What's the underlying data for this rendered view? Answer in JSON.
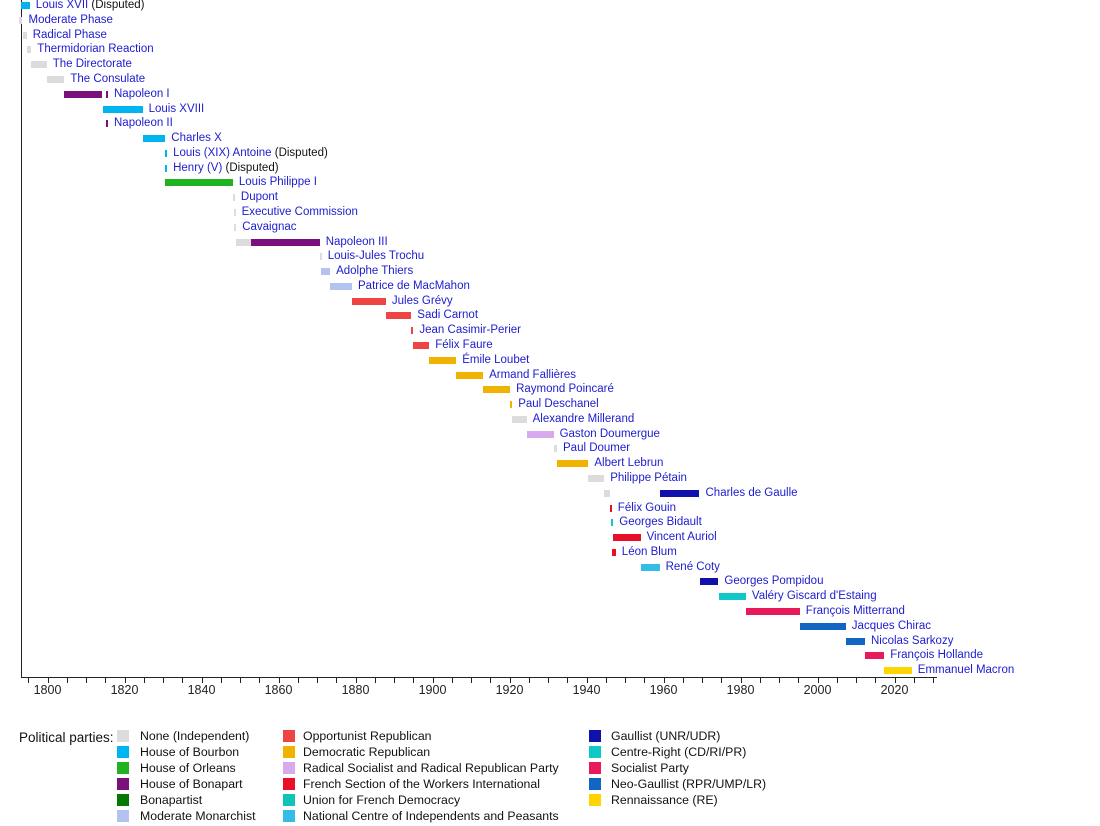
{
  "palette": {
    "none": "#DCDCDC",
    "house_of_bourbon": "#00B4F0",
    "house_of_orleans": "#1FB41F",
    "house_of_bonapart": "#7A107A",
    "bonapartist": "#067806",
    "moderate_monarchist": "#B4C2F0",
    "opportunist_republican": "#EE4444",
    "democratic_republican": "#F0B400",
    "radical_socialist": "#D9A9ED",
    "sfio": "#E80F28",
    "udf": "#11C5B4",
    "cnip": "#35BDE8",
    "gaullist": "#1010AA",
    "centre_right": "#10C8C8",
    "socialist": "#E91A5C",
    "neo_gaullist": "#1166C4",
    "renaissance": "#FFD400"
  },
  "chart_data": {
    "type": "timeline",
    "title": "",
    "axis": {
      "start": 1793,
      "end": 2031,
      "minor_tick_years": 5,
      "label_years": 20,
      "tick_labels": [
        "1800",
        "1820",
        "1840",
        "1860",
        "1880",
        "1900",
        "1920",
        "1940",
        "1960",
        "1980",
        "2000",
        "2020"
      ]
    },
    "rows": [
      {
        "label": "Louis XVII",
        "suffix": " (Disputed)",
        "segments": [
          {
            "start": 1793.1,
            "end": 1795.4,
            "party": "house_of_bourbon"
          }
        ]
      },
      {
        "label": "Moderate Phase",
        "segments": [
          {
            "start": 1792.7,
            "end": 1793.5,
            "party": "none"
          }
        ]
      },
      {
        "label": "Radical Phase",
        "segments": [
          {
            "start": 1793.5,
            "end": 1794.6,
            "party": "none"
          }
        ]
      },
      {
        "label": "Thermidorian Reaction",
        "segments": [
          {
            "start": 1794.6,
            "end": 1795.8,
            "party": "none"
          }
        ]
      },
      {
        "label": "The Directorate",
        "segments": [
          {
            "start": 1795.8,
            "end": 1799.8,
            "party": "none"
          }
        ]
      },
      {
        "label": "The Consulate",
        "segments": [
          {
            "start": 1799.8,
            "end": 1804.4,
            "party": "none"
          }
        ]
      },
      {
        "label": "Napoleon I",
        "segments": [
          {
            "start": 1804.4,
            "end": 1814.3,
            "party": "house_of_bonapart"
          },
          {
            "start": 1815.2,
            "end": 1815.5,
            "party": "house_of_bonapart"
          }
        ]
      },
      {
        "label": "Louis XVIII",
        "segments": [
          {
            "start": 1814.3,
            "end": 1824.7,
            "party": "house_of_bourbon"
          }
        ]
      },
      {
        "label": "Napoleon II",
        "segments": [
          {
            "start": 1815.2,
            "end": 1815.5,
            "party": "house_of_bonapart"
          }
        ]
      },
      {
        "label": "Charles X",
        "segments": [
          {
            "start": 1824.7,
            "end": 1830.6,
            "party": "house_of_bourbon"
          }
        ]
      },
      {
        "label": "Louis (XIX) Antoine",
        "suffix": " (Disputed)",
        "segments": [
          {
            "start": 1830.55,
            "end": 1830.85,
            "party": "house_of_bourbon"
          }
        ]
      },
      {
        "label": "Henry (V)",
        "suffix": " (Disputed)",
        "segments": [
          {
            "start": 1830.55,
            "end": 1830.85,
            "party": "house_of_bourbon"
          }
        ]
      },
      {
        "label": "Louis Philippe I",
        "segments": [
          {
            "start": 1830.6,
            "end": 1848.15,
            "party": "house_of_orleans"
          }
        ]
      },
      {
        "label": "Dupont",
        "segments": [
          {
            "start": 1848.15,
            "end": 1848.45,
            "party": "none"
          }
        ]
      },
      {
        "label": "Executive Commission",
        "segments": [
          {
            "start": 1848.35,
            "end": 1848.65,
            "party": "none"
          }
        ]
      },
      {
        "label": "Cavaignac",
        "segments": [
          {
            "start": 1848.5,
            "end": 1848.95,
            "party": "none"
          }
        ]
      },
      {
        "label": "Napoleon III",
        "segments": [
          {
            "start": 1848.95,
            "end": 1852.9,
            "party": "none"
          },
          {
            "start": 1852.9,
            "end": 1870.7,
            "party": "house_of_bonapart"
          }
        ]
      },
      {
        "label": "Louis-Jules Trochu",
        "segments": [
          {
            "start": 1870.7,
            "end": 1871.1,
            "party": "none"
          }
        ]
      },
      {
        "label": "Adolphe Thiers",
        "segments": [
          {
            "start": 1871.1,
            "end": 1873.4,
            "party": "moderate_monarchist"
          }
        ]
      },
      {
        "label": "Patrice de MacMahon",
        "segments": [
          {
            "start": 1873.4,
            "end": 1879.1,
            "party": "moderate_monarchist"
          }
        ]
      },
      {
        "label": "Jules Grévy",
        "segments": [
          {
            "start": 1879.1,
            "end": 1887.9,
            "party": "opportunist_republican"
          }
        ]
      },
      {
        "label": "Sadi Carnot",
        "segments": [
          {
            "start": 1887.9,
            "end": 1894.5,
            "party": "opportunist_republican"
          }
        ]
      },
      {
        "label": "Jean Casimir-Perier",
        "segments": [
          {
            "start": 1894.5,
            "end": 1895.05,
            "party": "opportunist_republican"
          }
        ]
      },
      {
        "label": "Félix Faure",
        "segments": [
          {
            "start": 1895.05,
            "end": 1899.15,
            "party": "opportunist_republican"
          }
        ]
      },
      {
        "label": "Émile Loubet",
        "segments": [
          {
            "start": 1899.15,
            "end": 1906.15,
            "party": "democratic_republican"
          }
        ]
      },
      {
        "label": "Armand Fallières",
        "segments": [
          {
            "start": 1906.15,
            "end": 1913.15,
            "party": "democratic_republican"
          }
        ]
      },
      {
        "label": "Raymond Poincaré",
        "segments": [
          {
            "start": 1913.15,
            "end": 1920.15,
            "party": "democratic_republican"
          }
        ]
      },
      {
        "label": "Paul Deschanel",
        "segments": [
          {
            "start": 1920.1,
            "end": 1920.7,
            "party": "democratic_republican"
          }
        ]
      },
      {
        "label": "Alexandre Millerand",
        "segments": [
          {
            "start": 1920.7,
            "end": 1924.45,
            "party": "none"
          }
        ]
      },
      {
        "label": "Gaston Doumergue",
        "segments": [
          {
            "start": 1924.45,
            "end": 1931.45,
            "party": "radical_socialist"
          }
        ]
      },
      {
        "label": "Paul Doumer",
        "segments": [
          {
            "start": 1931.45,
            "end": 1932.35,
            "party": "none"
          }
        ]
      },
      {
        "label": "Albert Lebrun",
        "segments": [
          {
            "start": 1932.35,
            "end": 1940.5,
            "party": "democratic_republican"
          }
        ]
      },
      {
        "label": "Philippe Pétain",
        "segments": [
          {
            "start": 1940.5,
            "end": 1944.6,
            "party": "none"
          }
        ]
      },
      {
        "label": "Charles de Gaulle",
        "segments": [
          {
            "start": 1944.6,
            "end": 1946.05,
            "party": "none"
          },
          {
            "start": 1959.0,
            "end": 1969.35,
            "party": "gaullist"
          }
        ]
      },
      {
        "label": "Félix Gouin",
        "segments": [
          {
            "start": 1946.05,
            "end": 1946.4,
            "party": "sfio"
          }
        ]
      },
      {
        "label": "Georges Bidault",
        "segments": [
          {
            "start": 1946.45,
            "end": 1946.8,
            "party": "centre_right"
          }
        ]
      },
      {
        "label": "Vincent Auriol",
        "segments": [
          {
            "start": 1946.85,
            "end": 1947.15,
            "party": "sfio"
          },
          {
            "start": 1947.4,
            "end": 1954.05,
            "party": "sfio"
          }
        ]
      },
      {
        "label": "Léon Blum",
        "segments": [
          {
            "start": 1946.6,
            "end": 1947.6,
            "party": "sfio"
          }
        ]
      },
      {
        "label": "René Coty",
        "segments": [
          {
            "start": 1954.05,
            "end": 1959.0,
            "party": "cnip"
          }
        ]
      },
      {
        "label": "Georges Pompidou",
        "segments": [
          {
            "start": 1969.45,
            "end": 1974.25,
            "party": "gaullist"
          }
        ]
      },
      {
        "label": "Valéry Giscard d'Estaing",
        "segments": [
          {
            "start": 1974.4,
            "end": 1981.4,
            "party": "centre_right"
          }
        ]
      },
      {
        "label": "François Mitterrand",
        "segments": [
          {
            "start": 1981.4,
            "end": 1995.4,
            "party": "socialist"
          }
        ]
      },
      {
        "label": "Jacques Chirac",
        "segments": [
          {
            "start": 1995.4,
            "end": 2007.35,
            "party": "neo_gaullist"
          }
        ]
      },
      {
        "label": "Nicolas Sarkozy",
        "segments": [
          {
            "start": 2007.35,
            "end": 2012.35,
            "party": "neo_gaullist"
          }
        ]
      },
      {
        "label": "François Hollande",
        "segments": [
          {
            "start": 2012.35,
            "end": 2017.35,
            "party": "socialist"
          }
        ]
      },
      {
        "label": "Emmanuel Macron",
        "segments": [
          {
            "start": 2017.35,
            "end": 2024.5,
            "party": "renaissance"
          }
        ]
      }
    ]
  },
  "legend": {
    "title": "Political parties:",
    "columns": [
      [
        {
          "label": "None (Independent)",
          "party": "none"
        },
        {
          "label": "House of Bourbon",
          "party": "house_of_bourbon"
        },
        {
          "label": "House of Orleans",
          "party": "house_of_orleans"
        },
        {
          "label": "House of Bonapart",
          "party": "house_of_bonapart"
        },
        {
          "label": "Bonapartist",
          "party": "bonapartist"
        },
        {
          "label": "Moderate Monarchist",
          "party": "moderate_monarchist"
        }
      ],
      [
        {
          "label": "Opportunist Republican",
          "party": "opportunist_republican"
        },
        {
          "label": "Democratic Republican",
          "party": "democratic_republican"
        },
        {
          "label": "Radical Socialist and Radical Republican Party",
          "party": "radical_socialist"
        },
        {
          "label": "French Section of the Workers International",
          "party": "sfio"
        },
        {
          "label": "Union for French Democracy",
          "party": "udf"
        },
        {
          "label": "National Centre of Independents and Peasants",
          "party": "cnip"
        }
      ],
      [
        {
          "label": "Gaullist (UNR/UDR)",
          "party": "gaullist"
        },
        {
          "label": "Centre-Right (CD/RI/PR)",
          "party": "centre_right"
        },
        {
          "label": "Socialist Party",
          "party": "socialist"
        },
        {
          "label": "Neo-Gaullist (RPR/UMP/LR)",
          "party": "neo_gaullist"
        },
        {
          "label": "Rennaissance (RE)",
          "party": "renaissance"
        }
      ]
    ]
  }
}
